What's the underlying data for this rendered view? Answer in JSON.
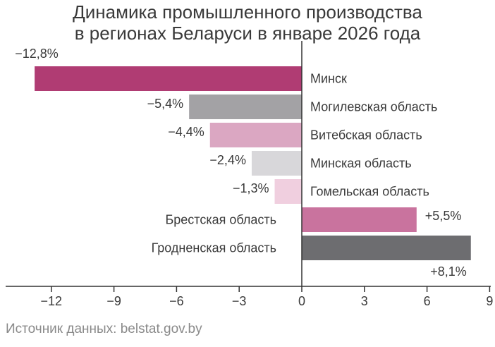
{
  "chart_data": {
    "type": "bar",
    "orientation": "horizontal",
    "title": [
      "Динамика промышленного производства",
      "в регионах Беларуси в январе 2026 года"
    ],
    "categories": [
      "Минск",
      "Могилевская область",
      "Витебская область",
      "Минская область",
      "Гомельская область",
      "Брестская область",
      "Гродненская область"
    ],
    "values": [
      -12.8,
      -5.4,
      -4.4,
      -2.4,
      -1.3,
      5.5,
      8.1
    ],
    "value_labels": [
      "−12,8%",
      "−5,4%",
      "−4,4%",
      "−2,4%",
      "−1,3%",
      "+5,5%",
      "+8,1%"
    ],
    "colors": [
      "#b03c73",
      "#a3a2a5",
      "#dba7c2",
      "#d8d7da",
      "#f0cfdf",
      "#c9739e",
      "#6d6d70"
    ],
    "xlim": [
      -14,
      9
    ],
    "xticks": [
      -12,
      -9,
      -6,
      -3,
      0,
      3,
      6,
      9
    ],
    "xtick_labels": [
      "−12",
      "−9",
      "−6",
      "−3",
      "0",
      "3",
      "6",
      "9"
    ],
    "xlabel": "",
    "ylabel": ""
  },
  "source": "Источник данных: belstat.gov.by"
}
